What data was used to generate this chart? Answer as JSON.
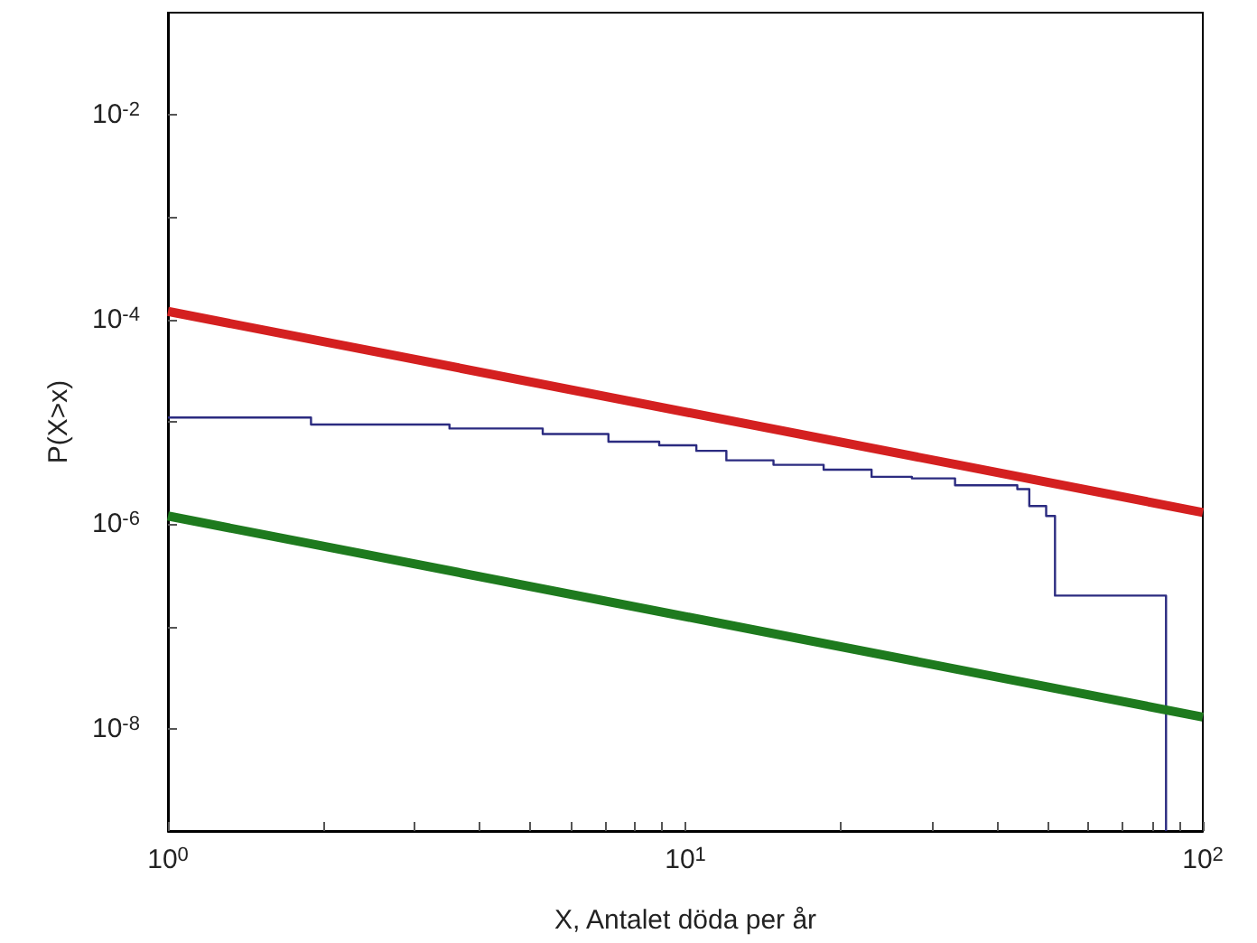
{
  "chart_data": {
    "type": "line",
    "xlabel": "X, Antalet döda per år",
    "ylabel": "P(X>x)",
    "log": "xy",
    "grid": false,
    "marker": "none",
    "xlim": [
      1,
      100
    ],
    "xticks": [
      {
        "value": 1,
        "label": "10$^{0}$"
      },
      {
        "value": 2,
        "label": null
      },
      {
        "value": 3,
        "label": null
      },
      {
        "value": 4,
        "label": null
      },
      {
        "value": 5,
        "label": null
      },
      {
        "value": 6,
        "label": null
      },
      {
        "value": 7,
        "label": null
      },
      {
        "value": 8,
        "label": null
      },
      {
        "value": 9,
        "label": null
      },
      {
        "value": 10,
        "label": "10$^{1}$"
      },
      {
        "value": 20,
        "label": null
      },
      {
        "value": 30,
        "label": null
      },
      {
        "value": 40,
        "label": null
      },
      {
        "value": 50,
        "label": null
      },
      {
        "value": 60,
        "label": null
      },
      {
        "value": 70,
        "label": null
      },
      {
        "value": 80,
        "label": null
      },
      {
        "value": 90,
        "label": null
      },
      {
        "value": 100,
        "label": "10$^{2}$"
      }
    ],
    "ylim": [
      1e-09,
      0.1
    ],
    "yticks": [
      {
        "value": 1e-08,
        "label": "10$^{-8}$"
      },
      {
        "value": 1e-07,
        "label": null
      },
      {
        "value": 1e-06,
        "label": "10$^{-6}$"
      },
      {
        "value": 1e-05,
        "label": null
      },
      {
        "value": 0.0001,
        "label": "10$^{-4}$"
      },
      {
        "value": 0.001,
        "label": null
      },
      {
        "value": 0.01,
        "label": "10$^{-2}$"
      }
    ],
    "series": [
      {
        "type": "step",
        "color": "#2b2b80",
        "x": [
          1,
          1.89,
          3.5,
          5.3,
          7.1,
          8.9,
          10.5,
          12,
          14.8,
          18.5,
          22.9,
          27.4,
          33.2,
          43.8,
          46.2,
          49.8,
          51.8,
          84.9
        ],
        "values": [
          1.1e-05,
          9.4e-06,
          8.6e-06,
          7.6e-06,
          6.4e-06,
          5.9e-06,
          5.2e-06,
          4.2e-06,
          3.8e-06,
          3.4e-06,
          2.9e-06,
          2.8e-06,
          2.4e-06,
          2.2e-06,
          1.5e-06,
          1.2e-06,
          2e-07,
          1e-09
        ]
      },
      {
        "color": "#d42020",
        "x": [
          1,
          100
        ],
        "values": [
          0.00012,
          1.3e-06
        ]
      },
      {
        "color": "#1e7a1e",
        "x": [
          1,
          100
        ],
        "values": [
          1.2e-06,
          1.3e-08
        ]
      }
    ]
  }
}
